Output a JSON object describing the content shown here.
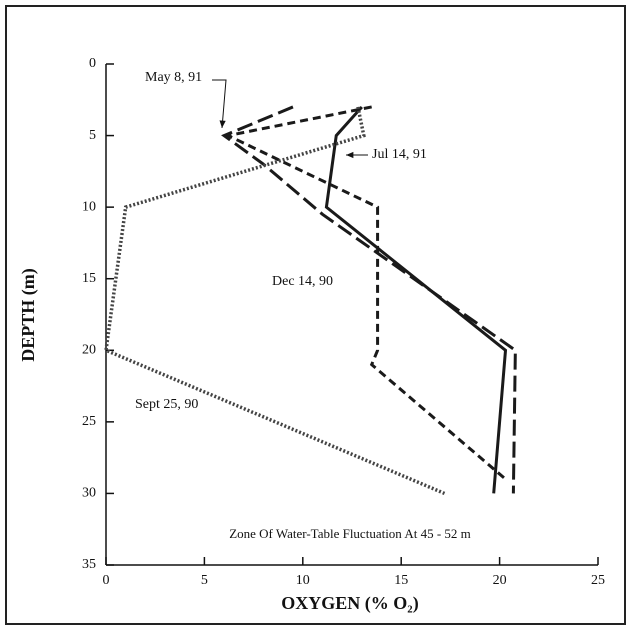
{
  "chart_data": {
    "type": "line",
    "x_label": "OXYGEN (% O₂)",
    "y_label": "DEPTH (m)",
    "annotation": "Zone Of Water-Table Fluctuation At 45 - 52 m",
    "xlim": [
      0,
      25
    ],
    "xticks": [
      0,
      5,
      10,
      15,
      20,
      25
    ],
    "ylim": [
      0,
      35
    ],
    "yticks": [
      0,
      5,
      10,
      15,
      20,
      25,
      30,
      35
    ],
    "y_inverted": true,
    "series": [
      {
        "name": "May 8, 91",
        "color": "#1a1a1a",
        "style": "longdash",
        "x": [
          9.5,
          6,
          8,
          11,
          20.8,
          20.7
        ],
        "values": [
          3,
          5,
          7,
          10.5,
          20,
          30
        ]
      },
      {
        "name": "Jul 14, 91",
        "color": "#1a1a1a",
        "style": "solid",
        "x": [
          13,
          11.7,
          11.2,
          20.3,
          19.7
        ],
        "values": [
          3,
          5,
          10,
          20,
          30
        ]
      },
      {
        "name": "Dec 14, 90",
        "color": "#1a1a1a",
        "style": "dashed",
        "x": [
          13.5,
          6.2,
          13.8,
          13.8,
          13.5,
          20.3
        ],
        "values": [
          3,
          5,
          10,
          20,
          21,
          29
        ]
      },
      {
        "name": "Sept 25, 90",
        "color": "#444444",
        "style": "dotted",
        "x": [
          12.8,
          13.1,
          1,
          0,
          17.2
        ],
        "values": [
          3,
          5,
          10,
          20,
          30
        ]
      }
    ]
  }
}
